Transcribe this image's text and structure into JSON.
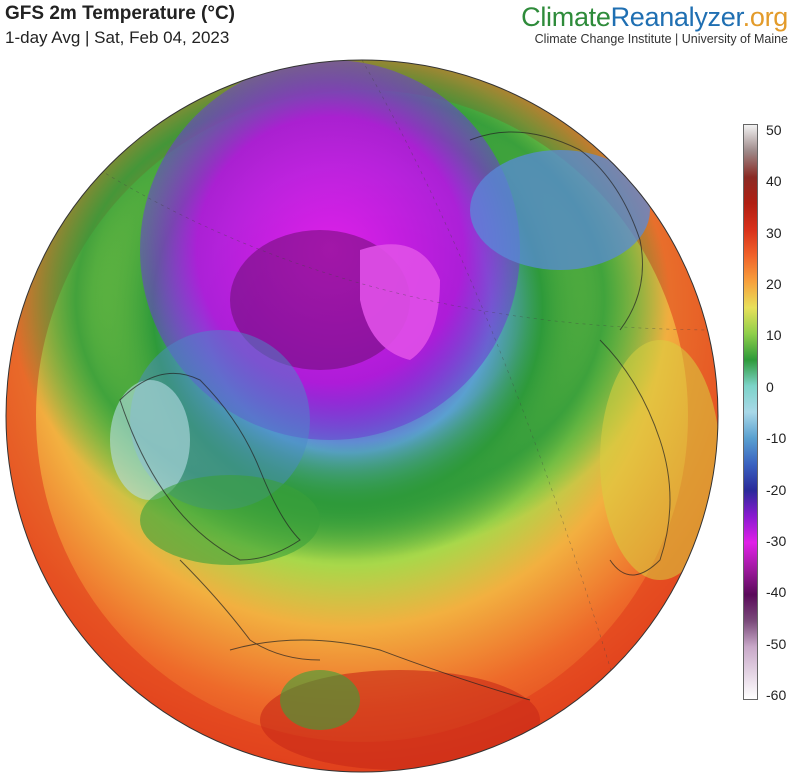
{
  "header": {
    "title": "GFS 2m Temperature (°C)",
    "subtitle": "1-day Avg | Sat, Feb 04, 2023"
  },
  "brand": {
    "part1": "Climate",
    "part2": "Reanalyzer",
    "part3": ".org",
    "subtitle": "Climate Change Institute | University of Maine"
  },
  "colorbar": {
    "labels": [
      "50",
      "40",
      "30",
      "20",
      "10",
      "0",
      "-10",
      "-20",
      "-30",
      "-40",
      "-50",
      "-60"
    ],
    "min": -60,
    "max": 50,
    "stops": [
      {
        "value": 50,
        "color": "#f2f2f2"
      },
      {
        "value": 45,
        "color": "#9e8a8a"
      },
      {
        "value": 40,
        "color": "#8a2a24"
      },
      {
        "value": 35,
        "color": "#b01e12"
      },
      {
        "value": 30,
        "color": "#d8301a"
      },
      {
        "value": 25,
        "color": "#f0622a"
      },
      {
        "value": 20,
        "color": "#f7a03c"
      },
      {
        "value": 15,
        "color": "#e8e05a"
      },
      {
        "value": 10,
        "color": "#8fcf4a"
      },
      {
        "value": 5,
        "color": "#2e9a3a"
      },
      {
        "value": 0,
        "color": "#7cd3c8"
      },
      {
        "value": -5,
        "color": "#a8d8e8"
      },
      {
        "value": -10,
        "color": "#5aa0d0"
      },
      {
        "value": -15,
        "color": "#3a62c0"
      },
      {
        "value": -20,
        "color": "#2a2a9a"
      },
      {
        "value": -25,
        "color": "#8a1ad0"
      },
      {
        "value": -30,
        "color": "#e020e8"
      },
      {
        "value": -35,
        "color": "#a01aa0"
      },
      {
        "value": -40,
        "color": "#5a0a5a"
      },
      {
        "value": -45,
        "color": "#7a4a7a"
      },
      {
        "value": -50,
        "color": "#c8a8c8"
      },
      {
        "value": -60,
        "color": "#ffffff"
      }
    ]
  }
}
